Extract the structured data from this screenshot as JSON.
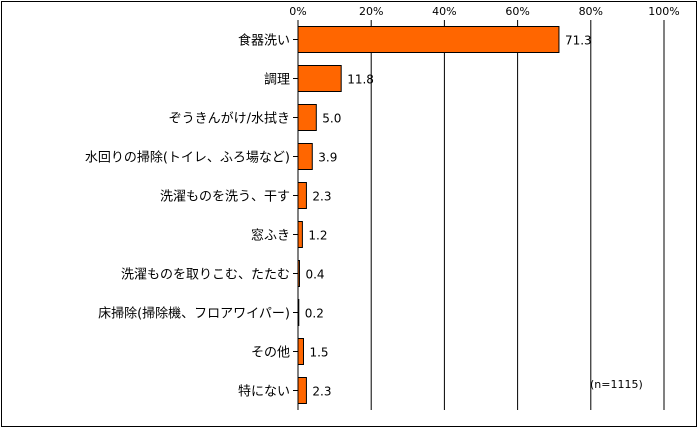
{
  "chart_data": {
    "type": "bar",
    "orientation": "horizontal",
    "categories": [
      "食器洗い",
      "調理",
      "ぞうきんがけ/水拭き",
      "水回りの掃除(トイレ、ふろ場など)",
      "洗濯ものを洗う、干す",
      "窓ふき",
      "洗濯ものを取りこむ、たたむ",
      "床掃除(掃除機、フロアワイパー)",
      "その他",
      "特にない"
    ],
    "values": [
      71.3,
      11.8,
      5.0,
      3.9,
      2.3,
      1.2,
      0.4,
      0.2,
      1.5,
      2.3
    ],
    "value_labels": [
      "71.3",
      "11.8",
      "5.0",
      "3.9",
      "2.3",
      "1.2",
      "0.4",
      "0.2",
      "1.5",
      "2.3"
    ],
    "xlim": [
      0,
      100
    ],
    "xticks": [
      0,
      20,
      40,
      60,
      80,
      100
    ],
    "xtick_labels": [
      "0%",
      "20%",
      "40%",
      "60%",
      "80%",
      "100%"
    ],
    "grid": true,
    "bar_color": "#FF6600",
    "bar_edge_color": "#000000",
    "annotation": "(n=1115)"
  }
}
